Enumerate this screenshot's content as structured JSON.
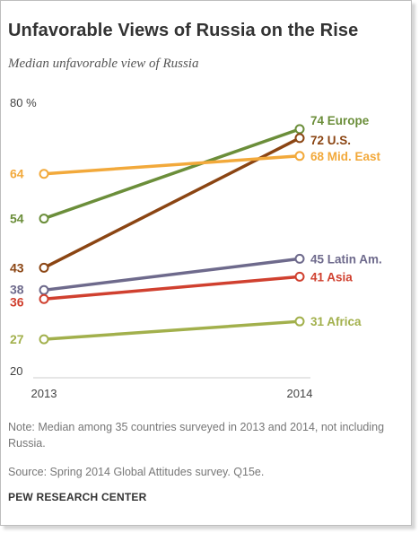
{
  "title": "Unfavorable Views of Russia on the Rise",
  "subtitle": "Median unfavorable view of Russia",
  "note": "Note: Median among 35 countries surveyed in 2013 and 2014, not including Russia.",
  "source": "Source: Spring 2014 Global Attitudes survey. Q15e.",
  "organization": "PEW RESEARCH CENTER",
  "chart_data": {
    "type": "line",
    "title": "Unfavorable Views of Russia on the Rise",
    "subtitle": "Median unfavorable view of Russia",
    "x": [
      "2013",
      "2014"
    ],
    "ylim": [
      20,
      80
    ],
    "y_ticks": [
      {
        "value": 80,
        "label": "80 %"
      },
      {
        "value": 20,
        "label": "20"
      }
    ],
    "unit": "%",
    "grid": false,
    "series": [
      {
        "name": "Europe",
        "values": [
          54,
          74
        ],
        "color": "#6b8e3a",
        "start_label": "54",
        "end_label": "74 Europe"
      },
      {
        "name": "U.S.",
        "values": [
          43,
          72
        ],
        "color": "#8b4513",
        "start_label": "43",
        "end_label": "72 U.S."
      },
      {
        "name": "Mid. East",
        "values": [
          64,
          68
        ],
        "color": "#f2a93b",
        "start_label": "64",
        "end_label": "68 Mid. East"
      },
      {
        "name": "Latin Am.",
        "values": [
          38,
          45
        ],
        "color": "#6e6a8c",
        "start_label": "38",
        "end_label": "45 Latin Am."
      },
      {
        "name": "Asia",
        "values": [
          36,
          41
        ],
        "color": "#d0402f",
        "start_label": "36",
        "end_label": "41 Asia"
      },
      {
        "name": "Africa",
        "values": [
          27,
          31
        ],
        "color": "#a2b04c",
        "start_label": "27",
        "end_label": "31 Africa"
      }
    ]
  }
}
